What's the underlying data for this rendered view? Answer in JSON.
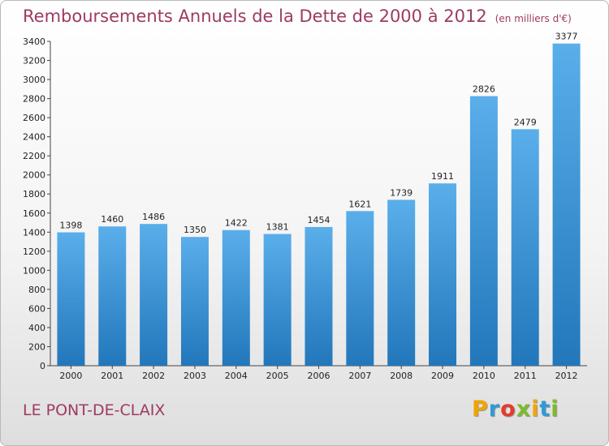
{
  "title": "Remboursements Annuels de la Dette de 2000 à 2012",
  "unit_note": "(en milliers d'€)",
  "city": "LE PONT-DE-CLAIX",
  "logo": {
    "letters": [
      "P",
      "r",
      "o",
      "x",
      "i",
      "t",
      "i"
    ],
    "colors": [
      "#f0a500",
      "#2f9ad6",
      "#e43b2c",
      "#7cbb2a",
      "#f0a500",
      "#2f9ad6",
      "#7cbb2a"
    ]
  },
  "colors": {
    "bar_light": "#5aaeea",
    "bar_dark": "#2277bb",
    "title": "#9e3a63"
  },
  "chart_data": {
    "type": "bar",
    "title": "Remboursements Annuels de la Dette de 2000 à 2012",
    "xlabel": "",
    "ylabel": "",
    "categories": [
      "2000",
      "2001",
      "2002",
      "2003",
      "2004",
      "2005",
      "2006",
      "2007",
      "2008",
      "2009",
      "2010",
      "2011",
      "2012"
    ],
    "values": [
      1398,
      1460,
      1486,
      1350,
      1422,
      1381,
      1454,
      1621,
      1739,
      1911,
      2826,
      2479,
      3377
    ],
    "ylim": [
      0,
      3400
    ],
    "yticks": [
      0,
      200,
      400,
      600,
      800,
      1000,
      1200,
      1400,
      1600,
      1800,
      2000,
      2200,
      2400,
      2600,
      2800,
      3000,
      3200,
      3400
    ],
    "grid": false,
    "legend": "none"
  }
}
